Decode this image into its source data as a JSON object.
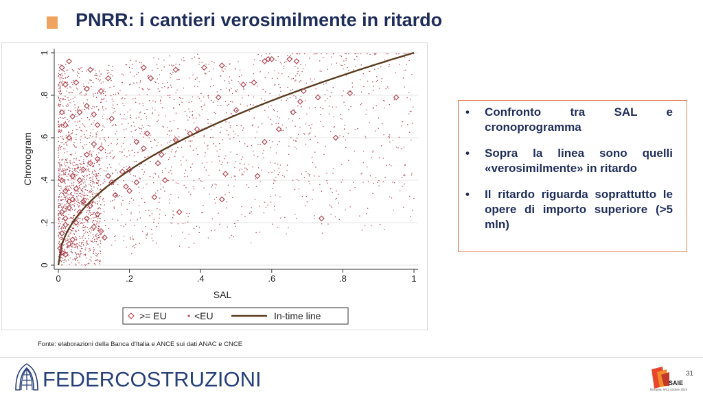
{
  "title": "PNRR: i cantieri verosimilmente in ritardo",
  "bullets": [
    "Confronto tra SAL e cronoprogramma",
    "Sopra la linea sono quelli «verosimilmente» in ritardo",
    "Il ritardo riguarda soprattutto le opere di importo superiore (>5 mln)"
  ],
  "source": "Fonte: elaborazioni della Banca d'Italia e ANCE sui dati ANAC e CNCE",
  "footer": {
    "org": "FEDERCOSTRUZIONI",
    "page": "31",
    "brand": "SAIE",
    "brand_sub": "Bologna, 9/12 ottobre 2024"
  },
  "colors": {
    "title": "#1f2d5a",
    "accent": "#f0a35e",
    "marker": "#b24a55",
    "line": "#5a3b1e",
    "box_border": "#e07b4f"
  },
  "icons": {
    "logo": "federcostruzioni-logo-icon",
    "saie": "saie-logo-icon"
  },
  "chart_data": {
    "type": "scatter",
    "xlabel": "SAL",
    "ylabel": "Chronogram",
    "xlim": [
      0,
      1
    ],
    "ylim": [
      0,
      1
    ],
    "x_ticks": [
      "0",
      ".2",
      ".4",
      ".6",
      ".8",
      "1"
    ],
    "y_ticks": [
      "0",
      ".2",
      ".4",
      ".6",
      ".8",
      "1"
    ],
    "grid": true,
    "legend_position": "bottom",
    "series": [
      {
        "name": ">= EU",
        "marker": "diamond",
        "color": "#b24a55",
        "points": [
          [
            0.01,
            0.93
          ],
          [
            0.03,
            0.96
          ],
          [
            0.02,
            0.85
          ],
          [
            0.05,
            0.86
          ],
          [
            0.08,
            0.83
          ],
          [
            0.12,
            0.82
          ],
          [
            0.14,
            0.88
          ],
          [
            0.09,
            0.92
          ],
          [
            0.24,
            0.93
          ],
          [
            0.26,
            0.88
          ],
          [
            0.33,
            0.92
          ],
          [
            0.41,
            0.93
          ],
          [
            0.46,
            0.94
          ],
          [
            0.52,
            0.85
          ],
          [
            0.55,
            0.86
          ],
          [
            0.58,
            0.96
          ],
          [
            0.59,
            0.97
          ],
          [
            0.6,
            0.97
          ],
          [
            0.65,
            0.97
          ],
          [
            0.67,
            0.96
          ],
          [
            0.69,
            0.82
          ],
          [
            0.73,
            0.79
          ],
          [
            0.82,
            0.81
          ],
          [
            0.95,
            0.79
          ],
          [
            0.78,
            0.6
          ],
          [
            0.74,
            0.22
          ],
          [
            0.56,
            0.42
          ],
          [
            0.46,
            0.31
          ],
          [
            0.45,
            0.79
          ],
          [
            0.5,
            0.73
          ],
          [
            0.39,
            0.64
          ],
          [
            0.37,
            0.62
          ],
          [
            0.33,
            0.59
          ],
          [
            0.29,
            0.52
          ],
          [
            0.28,
            0.48
          ],
          [
            0.34,
            0.25
          ],
          [
            0.25,
            0.62
          ],
          [
            0.2,
            0.45
          ],
          [
            0.19,
            0.37
          ],
          [
            0.18,
            0.44
          ],
          [
            0.2,
            0.35
          ],
          [
            0.16,
            0.33
          ],
          [
            0.15,
            0.39
          ],
          [
            0.14,
            0.42
          ],
          [
            0.12,
            0.55
          ],
          [
            0.11,
            0.5
          ],
          [
            0.1,
            0.57
          ],
          [
            0.09,
            0.48
          ],
          [
            0.08,
            0.52
          ],
          [
            0.07,
            0.45
          ],
          [
            0.06,
            0.4
          ],
          [
            0.05,
            0.36
          ],
          [
            0.04,
            0.31
          ],
          [
            0.03,
            0.27
          ],
          [
            0.02,
            0.22
          ],
          [
            0.01,
            0.15
          ],
          [
            0.005,
            0.08
          ],
          [
            0.01,
            0.06
          ],
          [
            0.02,
            0.05
          ],
          [
            0.03,
            0.1
          ],
          [
            0.04,
            0.12
          ],
          [
            0.02,
            0.19
          ],
          [
            0.01,
            0.25
          ],
          [
            0.03,
            0.3
          ],
          [
            0.02,
            0.35
          ],
          [
            0.01,
            0.4
          ],
          [
            0.04,
            0.42
          ],
          [
            0.06,
            0.25
          ],
          [
            0.07,
            0.3
          ],
          [
            0.05,
            0.2
          ],
          [
            0.08,
            0.22
          ],
          [
            0.09,
            0.28
          ],
          [
            0.1,
            0.18
          ],
          [
            0.12,
            0.16
          ],
          [
            0.13,
            0.13
          ],
          [
            0.11,
            0.24
          ],
          [
            0.03,
            0.6
          ],
          [
            0.02,
            0.66
          ],
          [
            0.01,
            0.72
          ],
          [
            0.04,
            0.7
          ],
          [
            0.06,
            0.72
          ],
          [
            0.08,
            0.75
          ],
          [
            0.1,
            0.71
          ],
          [
            0.11,
            0.66
          ],
          [
            0.15,
            0.69
          ],
          [
            0.22,
            0.58
          ],
          [
            0.24,
            0.55
          ],
          [
            0.47,
            0.43
          ],
          [
            0.58,
            0.58
          ],
          [
            0.62,
            0.64
          ],
          [
            0.66,
            0.72
          ],
          [
            0.68,
            0.77
          ],
          [
            0.3,
            0.4
          ],
          [
            0.27,
            0.32
          ],
          [
            0.22,
            0.39
          ]
        ]
      },
      {
        "name": "<EU",
        "marker": "dot",
        "color": "#b24a55",
        "count": 2600
      },
      {
        "name": "In-time line",
        "marker": "line",
        "color": "#5a3b1e",
        "formula": "y = sqrt(x)"
      }
    ],
    "legend": [
      {
        "label": ">= EU",
        "marker": "diamond"
      },
      {
        "label": "<EU",
        "marker": "dot"
      },
      {
        "label": "In-time line",
        "marker": "line"
      }
    ]
  }
}
